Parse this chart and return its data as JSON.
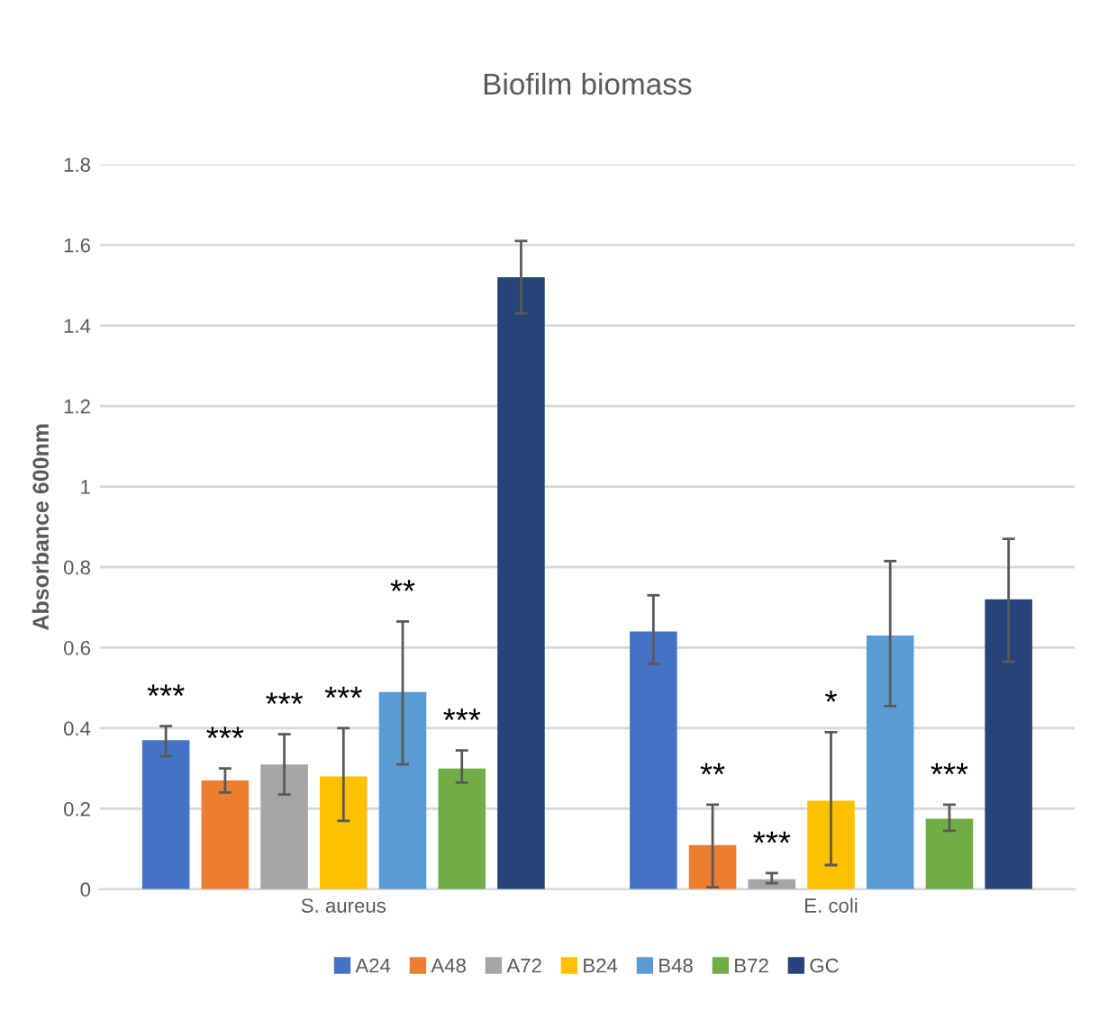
{
  "chart_data": {
    "type": "bar",
    "title": "Biofilm biomass",
    "ylabel": "Absorbance 600nm",
    "categories": [
      "S. aureus",
      "E. coli"
    ],
    "series": [
      {
        "name": "A24",
        "color": "#4472c4",
        "values": [
          0.37,
          0.64
        ],
        "errors": [
          [
            0.33,
            0.405
          ],
          [
            0.56,
            0.73
          ]
        ],
        "value_labels": [
          "***",
          null
        ]
      },
      {
        "name": "A48",
        "color": "#ed7d31",
        "values": [
          0.27,
          0.11
        ],
        "errors": [
          [
            0.24,
            0.3
          ],
          [
            0.005,
            0.21
          ]
        ],
        "value_labels": [
          "***",
          "**"
        ]
      },
      {
        "name": "A72",
        "color": "#a5a5a5",
        "values": [
          0.31,
          0.025
        ],
        "errors": [
          [
            0.235,
            0.385
          ],
          [
            0.015,
            0.04
          ]
        ],
        "value_labels": [
          "***",
          "***"
        ]
      },
      {
        "name": "B24",
        "color": "#ffc000",
        "values": [
          0.28,
          0.22
        ],
        "errors": [
          [
            0.17,
            0.4
          ],
          [
            0.06,
            0.39
          ]
        ],
        "value_labels": [
          "***",
          "*"
        ]
      },
      {
        "name": "B48",
        "color": "#5b9bd5",
        "values": [
          0.49,
          0.63
        ],
        "errors": [
          [
            0.31,
            0.665
          ],
          [
            0.455,
            0.815
          ]
        ],
        "value_labels": [
          "**",
          null
        ]
      },
      {
        "name": "B72",
        "color": "#70ad47",
        "values": [
          0.3,
          0.175
        ],
        "errors": [
          [
            0.265,
            0.345
          ],
          [
            0.145,
            0.21
          ]
        ],
        "value_labels": [
          "***",
          "***"
        ]
      },
      {
        "name": "GC",
        "color": "#264478",
        "values": [
          1.52,
          0.72
        ],
        "errors": [
          [
            1.43,
            1.61
          ],
          [
            0.565,
            0.87
          ]
        ],
        "value_labels": [
          null,
          null
        ]
      }
    ],
    "ylim": [
      0,
      1.8
    ],
    "yticks": [
      0,
      0.2,
      0.4,
      0.6,
      0.8,
      1,
      1.2,
      1.4,
      1.6,
      1.8
    ],
    "grid": "y",
    "legend": "bottom"
  }
}
